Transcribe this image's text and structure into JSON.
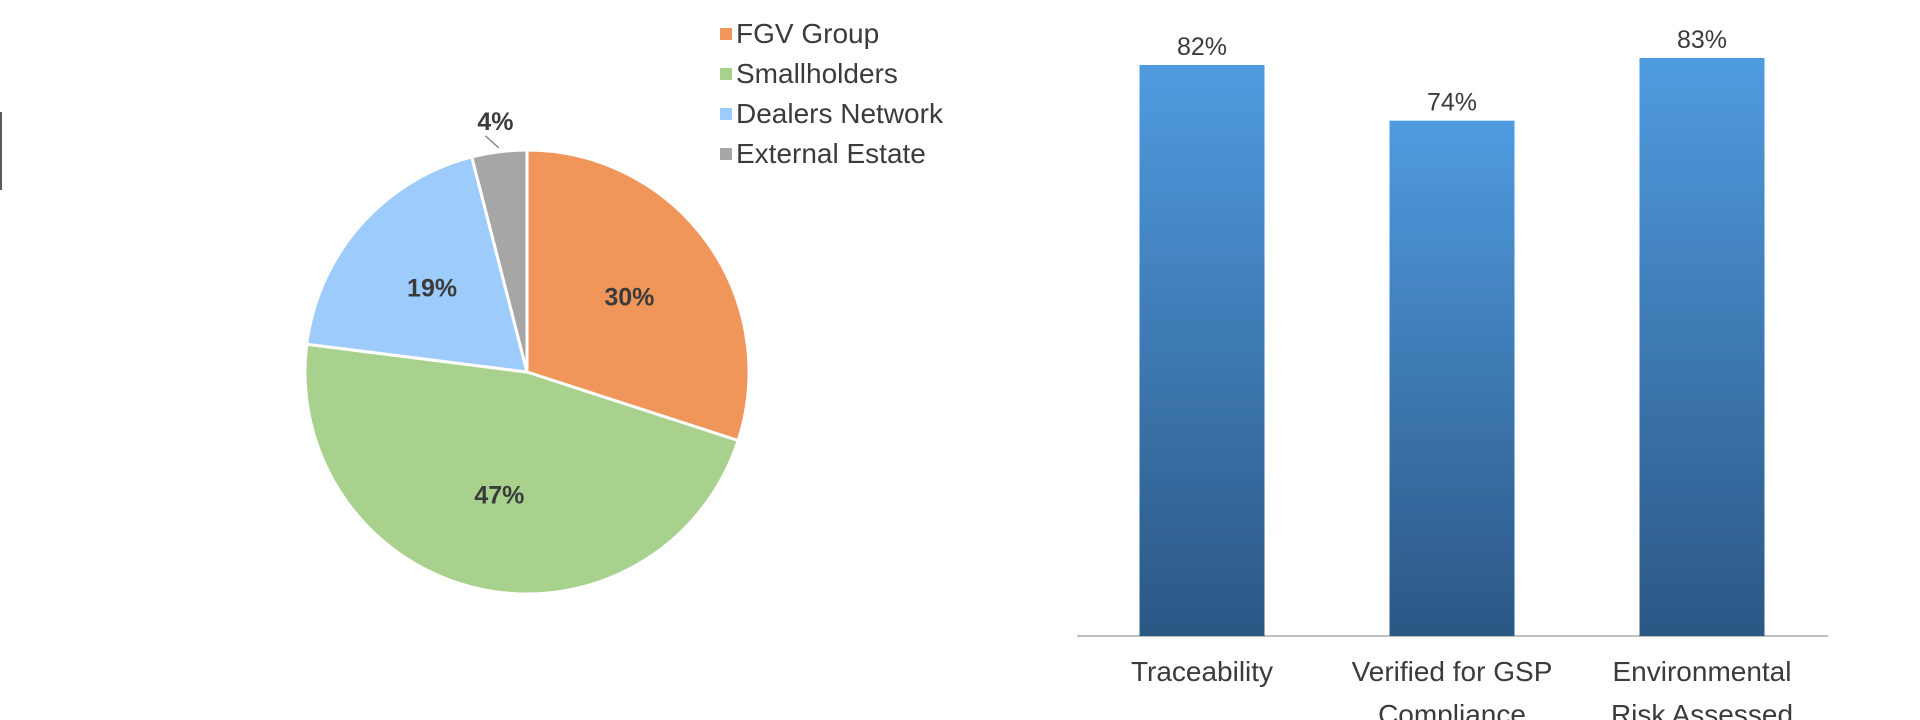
{
  "chart_data": [
    {
      "type": "pie",
      "slices": [
        {
          "name": "FGV Group",
          "value": 30,
          "label": "30%",
          "color": "#f0965a"
        },
        {
          "name": "Smallholders",
          "value": 47,
          "label": "47%",
          "color": "#a9d18e"
        },
        {
          "name": "Dealers Network",
          "value": 19,
          "label": "19%",
          "color": "#9dcbfc"
        },
        {
          "name": "External Estate",
          "value": 4,
          "label": "4%",
          "color": "#a6a6a6"
        }
      ],
      "legend": "top-right"
    },
    {
      "type": "bar",
      "categories": [
        [
          "Traceability"
        ],
        [
          "Verified for GSP",
          "Compliance"
        ],
        [
          "Environmental",
          "Risk Assessed"
        ]
      ],
      "values": [
        82,
        74,
        83
      ],
      "labels": [
        "82%",
        "74%",
        "83%"
      ],
      "color_top": "#4f9be0",
      "color_bottom": "#2b5784",
      "grid": false
    }
  ]
}
